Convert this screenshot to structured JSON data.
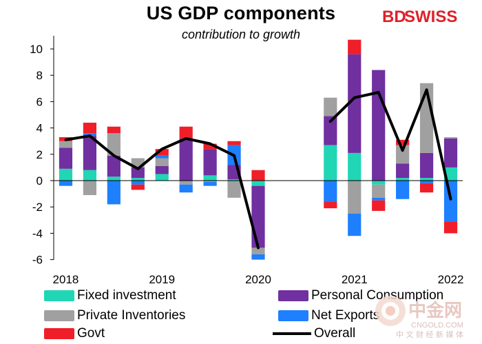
{
  "header": {
    "title": "US GDP components",
    "subtitle": "contribution to growth",
    "brand_bd": "BD",
    "brand_swiss": "SWISS"
  },
  "watermark": {
    "cn_logo": "中金网",
    "cn_domain": "CNGOLD.COM",
    "cn_tagline": "中 文 财 经 新 媒 体"
  },
  "legend": {
    "fixed_investment": "Fixed investment",
    "private_inventories": "Private Inventories",
    "govt": "Govt",
    "personal_consumption": "Personal Consumption",
    "net_exports": "Net Exports",
    "overall": "Overall"
  },
  "colors": {
    "fixed_investment": "#20d6b5",
    "private_inventories": "#a0a0a0",
    "govt": "#f01e28",
    "personal_consumption": "#7030a0",
    "net_exports": "#1e7fff",
    "overall": "#000000",
    "brand_red": "#e0202a"
  },
  "chart_data": {
    "type": "bar",
    "stacked": true,
    "title": "US GDP components",
    "subtitle": "contribution to growth",
    "xlabel": "",
    "ylabel": "",
    "ylim": [
      -6,
      11
    ],
    "yticks": [
      "-6",
      "-4",
      "-2",
      "0",
      "2",
      "4",
      "6",
      "8",
      "10"
    ],
    "xtick_labels": [
      "2018",
      "2019",
      "2020",
      "2021",
      "2022"
    ],
    "categories": [
      "2018Q1",
      "2018Q2",
      "2018Q3",
      "2018Q4",
      "2019Q1",
      "2019Q2",
      "2019Q3",
      "2019Q4",
      "2020Q1",
      "2020Q2",
      "2020Q3",
      "2020Q4",
      "2021Q1",
      "2021Q2",
      "2021Q3",
      "2021Q4",
      "2022Q1"
    ],
    "series": [
      {
        "key": "fixed_investment",
        "name": "Fixed investment",
        "values": [
          0.9,
          0.8,
          0.3,
          0.2,
          0.5,
          0.0,
          0.4,
          0.1,
          -0.4,
          null,
          null,
          2.7,
          2.1,
          -0.3,
          0.2,
          0.2,
          1.0
        ]
      },
      {
        "key": "personal_consumption",
        "name": "Personal Consumption",
        "values": [
          1.6,
          2.6,
          1.6,
          0.8,
          0.6,
          3.2,
          2.0,
          1.1,
          -4.7,
          null,
          null,
          2.2,
          7.5,
          8.4,
          1.1,
          1.9,
          2.2
        ]
      },
      {
        "key": "private_inventories",
        "name": "Private Inventories",
        "values": [
          0.5,
          -1.1,
          1.7,
          0.7,
          0.6,
          -0.3,
          -0.1,
          -1.3,
          -0.5,
          null,
          null,
          1.4,
          -2.5,
          -1.0,
          1.4,
          5.3,
          0.1
        ]
      },
      {
        "key": "net_exports",
        "name": "Net Exports",
        "values": [
          -0.4,
          0.2,
          -1.8,
          -0.3,
          0.2,
          -0.6,
          -0.3,
          1.5,
          -0.4,
          null,
          null,
          -1.6,
          -1.7,
          -0.2,
          -1.4,
          -0.2,
          -3.1
        ]
      },
      {
        "key": "govt",
        "name": "Govt",
        "values": [
          0.3,
          0.8,
          0.5,
          -0.4,
          0.5,
          0.9,
          0.4,
          0.3,
          0.8,
          null,
          null,
          -0.5,
          1.1,
          -0.8,
          0.4,
          -0.7,
          -0.9
        ]
      }
    ],
    "overall": {
      "name": "Overall",
      "values": [
        3.1,
        3.4,
        1.9,
        0.9,
        2.4,
        3.2,
        2.8,
        1.9,
        -5.1,
        null,
        null,
        4.5,
        6.3,
        6.7,
        2.3,
        6.9,
        -1.4
      ]
    }
  }
}
